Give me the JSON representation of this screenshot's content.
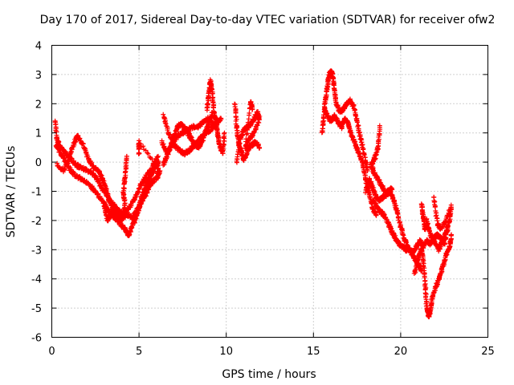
{
  "chart_data": {
    "type": "scatter",
    "title": "Day 170 of 2017, Sidereal Day-to-day VTEC variation (SDTVAR) for receiver ofw2",
    "xlabel": "GPS time / hours",
    "ylabel": "SDTVAR / TECUs",
    "xlim": [
      0,
      25
    ],
    "ylim": [
      -6,
      4
    ],
    "xticks": [
      "0",
      "5",
      "10",
      "15",
      "20",
      "25"
    ],
    "yticks": [
      "-6",
      "-5",
      "-4",
      "-3",
      "-2",
      "-1",
      "0",
      "1",
      "2",
      "3",
      "4"
    ],
    "grid": true,
    "marker": "+",
    "color": "#ff0000",
    "series": [
      {
        "name": "SDTVAR",
        "tracks": [
          [
            [
              0.25,
              0.6
            ],
            [
              0.5,
              0.3
            ],
            [
              0.8,
              0.0
            ],
            [
              1.1,
              -0.3
            ],
            [
              1.4,
              -0.5
            ],
            [
              1.8,
              -0.6
            ],
            [
              2.2,
              -0.8
            ],
            [
              2.6,
              -1.1
            ],
            [
              3.0,
              -1.4
            ],
            [
              3.3,
              -1.7
            ],
            [
              3.6,
              -1.9
            ],
            [
              3.9,
              -2.1
            ],
            [
              4.2,
              -2.3
            ],
            [
              4.4,
              -2.5
            ],
            [
              4.6,
              -2.2
            ],
            [
              4.9,
              -1.7
            ],
            [
              5.2,
              -1.1
            ],
            [
              5.5,
              -0.6
            ],
            [
              5.8,
              -0.3
            ]
          ],
          [
            [
              0.2,
              1.4
            ],
            [
              0.3,
              0.8
            ],
            [
              0.5,
              0.5
            ],
            [
              0.8,
              0.3
            ],
            [
              1.1,
              0.1
            ],
            [
              1.4,
              -0.1
            ],
            [
              1.7,
              -0.2
            ],
            [
              2.0,
              -0.3
            ],
            [
              2.4,
              -0.4
            ],
            [
              2.7,
              -0.7
            ],
            [
              3.0,
              -1.0
            ],
            [
              3.3,
              -1.3
            ],
            [
              3.6,
              -1.5
            ],
            [
              3.9,
              -1.7
            ],
            [
              4.2,
              -1.8
            ],
            [
              4.5,
              -1.5
            ],
            [
              4.8,
              -1.2
            ],
            [
              5.1,
              -0.8
            ],
            [
              5.4,
              -0.5
            ],
            [
              5.8,
              -0.1
            ],
            [
              6.1,
              0.2
            ]
          ],
          [
            [
              0.3,
              -0.1
            ],
            [
              0.7,
              -0.3
            ],
            [
              1.0,
              0.2
            ],
            [
              1.3,
              0.7
            ],
            [
              1.5,
              0.9
            ],
            [
              1.8,
              0.6
            ],
            [
              2.1,
              0.1
            ],
            [
              2.4,
              -0.2
            ],
            [
              2.7,
              -0.3
            ],
            [
              2.9,
              -0.6
            ],
            [
              3.1,
              -0.9
            ],
            [
              3.3,
              -1.3
            ],
            [
              3.5,
              -1.6
            ],
            [
              3.7,
              -1.8
            ],
            [
              3.9,
              -2.0
            ],
            [
              4.1,
              -1.9
            ],
            [
              4.3,
              -1.8
            ],
            [
              4.6,
              -1.9
            ],
            [
              4.9,
              -1.6
            ],
            [
              5.2,
              -1.3
            ],
            [
              5.5,
              -1.0
            ],
            [
              5.7,
              -0.7
            ],
            [
              5.9,
              -0.6
            ]
          ],
          [
            [
              3.0,
              -1.5
            ],
            [
              3.2,
              -2.0
            ],
            [
              3.4,
              -1.8
            ],
            [
              3.6,
              -1.6
            ],
            [
              3.8,
              -1.7
            ],
            [
              4.0,
              -2.0
            ],
            [
              4.2,
              -1.5
            ],
            [
              4.1,
              -1.0
            ],
            [
              4.2,
              -0.5
            ],
            [
              4.3,
              0.2
            ]
          ],
          [
            [
              4.7,
              -2.1
            ],
            [
              4.9,
              -1.8
            ],
            [
              5.1,
              -1.4
            ],
            [
              5.3,
              -1.0
            ],
            [
              5.5,
              -0.7
            ],
            [
              5.7,
              -0.4
            ],
            [
              5.9,
              -0.2
            ],
            [
              6.1,
              0.0
            ],
            [
              6.0,
              -0.6
            ],
            [
              6.2,
              -0.3
            ],
            [
              5.0,
              0.7
            ],
            [
              5.0,
              0.3
            ]
          ],
          [
            [
              6.4,
              1.6
            ],
            [
              6.7,
              1.0
            ],
            [
              7.0,
              0.6
            ],
            [
              7.3,
              0.4
            ],
            [
              7.6,
              0.3
            ],
            [
              7.9,
              0.4
            ],
            [
              8.2,
              0.6
            ],
            [
              8.5,
              0.8
            ],
            [
              8.8,
              1.0
            ],
            [
              9.1,
              1.1
            ],
            [
              9.4,
              1.3
            ],
            [
              9.7,
              1.5
            ]
          ],
          [
            [
              6.3,
              0.7
            ],
            [
              6.6,
              0.3
            ],
            [
              6.9,
              0.6
            ],
            [
              7.2,
              0.9
            ],
            [
              7.5,
              1.0
            ],
            [
              7.8,
              1.1
            ],
            [
              8.1,
              1.2
            ],
            [
              8.4,
              1.2
            ],
            [
              8.7,
              1.4
            ],
            [
              9.0,
              1.5
            ],
            [
              9.3,
              1.2
            ]
          ],
          [
            [
              6.4,
              -0.1
            ],
            [
              6.6,
              0.2
            ],
            [
              6.8,
              0.5
            ],
            [
              7.0,
              0.9
            ],
            [
              7.2,
              1.2
            ],
            [
              7.4,
              1.3
            ],
            [
              7.6,
              1.2
            ],
            [
              7.8,
              1.0
            ],
            [
              8.0,
              0.8
            ],
            [
              8.2,
              0.6
            ],
            [
              8.4,
              0.5
            ],
            [
              8.6,
              0.7
            ],
            [
              8.8,
              1.0
            ],
            [
              9.0,
              1.3
            ],
            [
              9.2,
              1.7
            ]
          ],
          [
            [
              8.9,
              1.8
            ],
            [
              9.0,
              2.3
            ],
            [
              9.1,
              2.8
            ],
            [
              9.2,
              2.4
            ],
            [
              9.3,
              1.7
            ],
            [
              9.4,
              1.4
            ],
            [
              9.5,
              1.0
            ],
            [
              9.6,
              0.6
            ],
            [
              9.8,
              0.3
            ],
            [
              9.9,
              1.0
            ]
          ],
          [
            [
              10.5,
              2.0
            ],
            [
              10.6,
              1.2
            ],
            [
              10.7,
              0.7
            ],
            [
              10.8,
              0.5
            ],
            [
              10.9,
              0.3
            ],
            [
              11.0,
              0.1
            ],
            [
              11.1,
              0.2
            ],
            [
              11.3,
              0.5
            ],
            [
              11.5,
              0.6
            ],
            [
              11.7,
              0.7
            ],
            [
              11.9,
              0.5
            ]
          ],
          [
            [
              10.6,
              0.0
            ],
            [
              10.8,
              0.8
            ],
            [
              11.0,
              1.1
            ],
            [
              11.2,
              1.2
            ],
            [
              11.4,
              1.3
            ],
            [
              11.6,
              1.5
            ],
            [
              11.8,
              1.7
            ],
            [
              11.9,
              1.5
            ],
            [
              11.6,
              1.0
            ],
            [
              11.3,
              0.8
            ],
            [
              11.1,
              0.5
            ],
            [
              11.4,
              2.1
            ],
            [
              11.5,
              1.8
            ]
          ],
          [
            [
              15.5,
              1.0
            ],
            [
              15.6,
              1.6
            ],
            [
              15.7,
              2.2
            ],
            [
              15.8,
              2.6
            ],
            [
              15.9,
              3.0
            ],
            [
              16.0,
              3.1
            ],
            [
              16.1,
              3.0
            ],
            [
              16.2,
              2.5
            ],
            [
              16.3,
              2.0
            ],
            [
              16.5,
              1.7
            ],
            [
              16.7,
              1.8
            ],
            [
              16.9,
              2.0
            ],
            [
              17.1,
              2.1
            ],
            [
              17.3,
              1.9
            ],
            [
              17.5,
              1.4
            ],
            [
              17.7,
              0.8
            ],
            [
              17.9,
              0.3
            ],
            [
              18.1,
              -0.3
            ]
          ],
          [
            [
              15.6,
              1.8
            ],
            [
              15.8,
              1.6
            ],
            [
              16.0,
              1.4
            ],
            [
              16.2,
              1.6
            ],
            [
              16.4,
              1.4
            ],
            [
              16.6,
              1.2
            ],
            [
              16.8,
              1.5
            ],
            [
              17.0,
              1.3
            ],
            [
              17.2,
              0.9
            ],
            [
              17.4,
              0.6
            ],
            [
              17.6,
              0.3
            ],
            [
              17.8,
              0.0
            ],
            [
              18.0,
              -0.6
            ],
            [
              18.2,
              -1.1
            ],
            [
              18.4,
              -1.6
            ],
            [
              18.6,
              -1.8
            ]
          ],
          [
            [
              18.0,
              -1.0
            ],
            [
              18.2,
              -0.6
            ],
            [
              18.4,
              -0.9
            ],
            [
              18.6,
              -1.2
            ],
            [
              18.8,
              -1.3
            ],
            [
              19.0,
              -1.2
            ],
            [
              19.2,
              -1.1
            ],
            [
              19.4,
              -1.0
            ],
            [
              19.6,
              -1.3
            ],
            [
              19.8,
              -1.7
            ],
            [
              20.0,
              -2.2
            ],
            [
              20.2,
              -2.6
            ],
            [
              20.4,
              -2.9
            ],
            [
              20.6,
              -3.1
            ],
            [
              20.8,
              -3.3
            ],
            [
              21.0,
              -3.5
            ],
            [
              21.2,
              -3.7
            ]
          ],
          [
            [
              18.4,
              -1.3
            ],
            [
              18.7,
              -1.6
            ],
            [
              19.0,
              -1.8
            ],
            [
              19.3,
              -2.1
            ],
            [
              19.5,
              -2.4
            ],
            [
              19.7,
              -2.6
            ],
            [
              19.9,
              -2.8
            ],
            [
              20.1,
              -2.9
            ],
            [
              20.3,
              -3.0
            ],
            [
              20.5,
              -3.0
            ],
            [
              20.7,
              -3.1
            ],
            [
              20.9,
              -2.9
            ],
            [
              21.1,
              -2.7
            ],
            [
              21.3,
              -2.9
            ],
            [
              21.5,
              -2.7
            ],
            [
              21.7,
              -2.8
            ],
            [
              21.9,
              -2.6
            ],
            [
              22.1,
              -2.5
            ],
            [
              22.3,
              -2.6
            ],
            [
              22.5,
              -2.8
            ],
            [
              22.7,
              -2.3
            ]
          ],
          [
            [
              18.8,
              1.2
            ],
            [
              18.7,
              0.5
            ],
            [
              18.5,
              0.1
            ],
            [
              18.3,
              -0.1
            ],
            [
              18.5,
              -0.4
            ],
            [
              18.7,
              -0.6
            ],
            [
              18.9,
              -0.8
            ],
            [
              19.1,
              -1.0
            ],
            [
              19.3,
              -1.0
            ],
            [
              19.5,
              -0.9
            ]
          ],
          [
            [
              20.8,
              -3.8
            ],
            [
              21.0,
              -3.3
            ],
            [
              21.2,
              -3.0
            ],
            [
              21.3,
              -3.4
            ],
            [
              21.4,
              -4.2
            ],
            [
              21.5,
              -5.0
            ],
            [
              21.6,
              -5.3
            ],
            [
              21.7,
              -5.1
            ],
            [
              21.8,
              -4.7
            ],
            [
              22.0,
              -4.3
            ],
            [
              22.2,
              -4.0
            ],
            [
              22.4,
              -3.6
            ],
            [
              22.6,
              -3.2
            ],
            [
              22.8,
              -2.9
            ],
            [
              22.9,
              -2.5
            ]
          ],
          [
            [
              21.2,
              -1.4
            ],
            [
              21.3,
              -1.9
            ],
            [
              21.4,
              -2.3
            ],
            [
              21.5,
              -2.0
            ],
            [
              21.6,
              -2.3
            ],
            [
              21.8,
              -2.6
            ],
            [
              22.0,
              -2.8
            ],
            [
              22.2,
              -3.0
            ],
            [
              22.4,
              -2.7
            ],
            [
              22.6,
              -2.4
            ],
            [
              22.8,
              -2.0
            ],
            [
              22.9,
              -1.5
            ],
            [
              22.6,
              -2.0
            ],
            [
              22.3,
              -2.3
            ],
            [
              22.1,
              -2.1
            ],
            [
              21.9,
              -1.2
            ]
          ]
        ]
      }
    ]
  }
}
